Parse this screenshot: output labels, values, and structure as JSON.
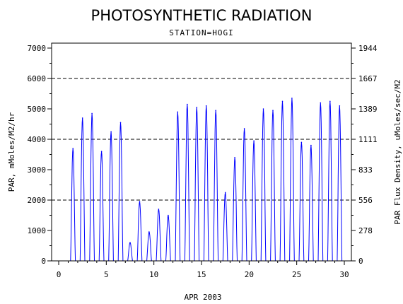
{
  "chart_data": {
    "type": "line",
    "title": "PHOTOSYNTHETIC RADIATION",
    "subtitle": "STATION=HOGI",
    "xlabel": "APR 2003",
    "ylabel": "PAR, mMoles/M2/hr",
    "y2label": "PAR Flux Density, uMoles/sec/M2",
    "xlim": [
      0,
      30
    ],
    "ylim": [
      0,
      7000
    ],
    "xticks": [
      "0",
      "5",
      "10",
      "15",
      "20",
      "25",
      "30"
    ],
    "yticks": [
      "0",
      "1000",
      "2000",
      "3000",
      "4000",
      "5000",
      "6000",
      "7000"
    ],
    "y2ticks": [
      "0",
      "278",
      "556",
      "833",
      "1111",
      "1389",
      "1667",
      "1944"
    ],
    "gridlines_y": [
      2000,
      4000,
      6000
    ],
    "grid_style": "dashed horizontal",
    "legend": "none",
    "line_color": "#0000ff",
    "daily_peaks": [
      {
        "day": 1,
        "peak": 3700
      },
      {
        "day": 2,
        "peak": 4700
      },
      {
        "day": 3,
        "peak": 4850
      },
      {
        "day": 4,
        "peak": 3600
      },
      {
        "day": 5,
        "peak": 4250
      },
      {
        "day": 6,
        "peak": 4550
      },
      {
        "day": 7,
        "peak": 600
      },
      {
        "day": 8,
        "peak": 1950
      },
      {
        "day": 9,
        "peak": 950
      },
      {
        "day": 10,
        "peak": 1700
      },
      {
        "day": 11,
        "peak": 1500
      },
      {
        "day": 12,
        "peak": 4900
      },
      {
        "day": 13,
        "peak": 5150
      },
      {
        "day": 14,
        "peak": 5050
      },
      {
        "day": 15,
        "peak": 5100
      },
      {
        "day": 16,
        "peak": 4950
      },
      {
        "day": 17,
        "peak": 2250
      },
      {
        "day": 18,
        "peak": 3400
      },
      {
        "day": 19,
        "peak": 4350
      },
      {
        "day": 20,
        "peak": 3950
      },
      {
        "day": 21,
        "peak": 5000
      },
      {
        "day": 22,
        "peak": 4950
      },
      {
        "day": 23,
        "peak": 5250
      },
      {
        "day": 24,
        "peak": 5350
      },
      {
        "day": 25,
        "peak": 3900
      },
      {
        "day": 26,
        "peak": 3800
      },
      {
        "day": 27,
        "peak": 5200
      },
      {
        "day": 28,
        "peak": 5250
      },
      {
        "day": 29,
        "peak": 5100
      }
    ]
  }
}
